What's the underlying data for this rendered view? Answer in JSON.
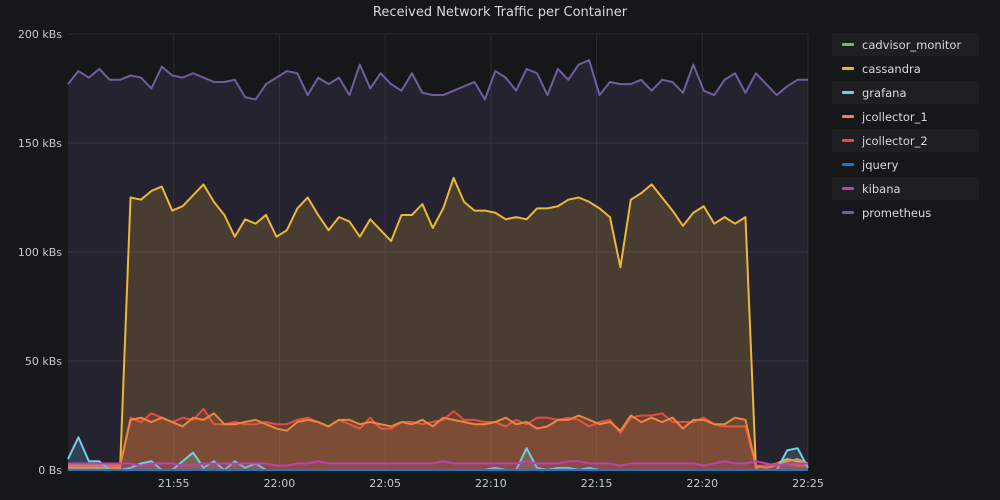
{
  "panel": {
    "title": "Received Network Traffic per Container"
  },
  "chart_data": {
    "type": "area",
    "title": "Received Network Traffic per Container",
    "x_start": "21:50",
    "x_end": "22:25",
    "x_ticks": [
      "21:55",
      "22:00",
      "22:05",
      "22:10",
      "22:15",
      "22:20",
      "22:25"
    ],
    "y_ticks": [
      "0 Bs",
      "50 kBs",
      "100 kBs",
      "150 kBs",
      "200 kBs"
    ],
    "ylim": [
      0,
      200
    ],
    "y_unit": "kBs",
    "legend_placement": "right",
    "grid": true,
    "x": [
      "21:50",
      "21:50",
      "21:51",
      "21:51",
      "21:52",
      "21:52",
      "21:53",
      "21:53",
      "21:54",
      "21:54",
      "21:55",
      "21:55",
      "21:56",
      "21:56",
      "21:57",
      "21:57",
      "21:58",
      "21:58",
      "21:59",
      "21:59",
      "22:00",
      "22:00",
      "22:01",
      "22:01",
      "22:02",
      "22:02",
      "22:03",
      "22:03",
      "22:04",
      "22:04",
      "22:05",
      "22:05",
      "22:06",
      "22:06",
      "22:07",
      "22:07",
      "22:08",
      "22:08",
      "22:09",
      "22:09",
      "22:10",
      "22:10",
      "22:11",
      "22:11",
      "22:12",
      "22:12",
      "22:13",
      "22:13",
      "22:14",
      "22:14",
      "22:15",
      "22:15",
      "22:16",
      "22:16",
      "22:17",
      "22:17",
      "22:18",
      "22:18",
      "22:19",
      "22:19",
      "22:20",
      "22:20",
      "22:21",
      "22:21",
      "22:22",
      "22:22",
      "22:23",
      "22:23",
      "22:24",
      "22:24",
      "22:25",
      "22:25"
    ],
    "series": [
      {
        "name": "cadvisor_monitor",
        "color": "#7eb26d",
        "values": [
          0,
          0,
          0,
          0,
          0,
          0,
          0,
          0,
          0,
          0,
          0,
          0,
          0,
          0,
          0,
          0,
          0,
          0,
          0,
          0,
          0,
          0,
          0,
          0,
          0,
          0,
          0,
          0,
          0,
          0,
          0,
          0,
          0,
          0,
          0,
          0,
          0,
          0,
          0,
          0,
          0,
          0,
          0,
          0,
          0,
          0,
          0,
          0,
          0,
          0,
          0,
          0,
          0,
          0,
          0,
          0,
          0,
          0,
          0,
          0,
          0,
          0,
          0,
          0,
          0,
          0,
          0,
          0,
          0,
          0,
          0,
          0
        ]
      },
      {
        "name": "cassandra",
        "color": "#eab839",
        "values": [
          1,
          1,
          1,
          1,
          1,
          1,
          125,
          124,
          128,
          130,
          119,
          121,
          126,
          131,
          123,
          117,
          107,
          115,
          113,
          117,
          107,
          110,
          120,
          125,
          117,
          110,
          116,
          114,
          107,
          115,
          110,
          105,
          117,
          117,
          122,
          111,
          120,
          134,
          123,
          119,
          119,
          118,
          115,
          116,
          115,
          120,
          120,
          121,
          124,
          125,
          123,
          120,
          116,
          93,
          124,
          127,
          131,
          125,
          119,
          112,
          118,
          121,
          113,
          116,
          113,
          116,
          1,
          2,
          3,
          5,
          4,
          2
        ]
      },
      {
        "name": "grafana",
        "color": "#6ed0e0",
        "values": [
          5,
          15,
          4,
          4,
          0,
          0,
          1,
          3,
          4,
          0,
          0,
          4,
          8,
          1,
          4,
          0,
          4,
          1,
          3,
          0,
          0,
          0,
          0,
          0,
          0,
          0,
          0,
          0,
          0,
          0,
          0,
          0,
          0,
          0,
          0,
          0,
          0,
          0,
          0,
          0,
          0,
          1,
          0,
          0,
          10,
          1,
          0,
          1,
          1,
          0,
          1,
          0,
          0,
          0,
          0,
          0,
          0,
          0,
          0,
          0,
          0,
          0,
          0,
          0,
          0,
          0,
          0,
          0,
          0,
          9,
          10,
          1
        ]
      },
      {
        "name": "jcollector_1",
        "color": "#ef843c",
        "values": [
          2,
          2,
          2,
          2,
          2,
          2,
          23,
          24,
          22,
          24,
          22,
          20,
          24,
          23,
          26,
          21,
          21,
          22,
          23,
          21,
          19,
          18,
          22,
          23,
          22,
          20,
          23,
          23,
          21,
          22,
          21,
          20,
          22,
          21,
          23,
          20,
          24,
          23,
          22,
          21,
          21,
          22,
          24,
          21,
          22,
          19,
          20,
          23,
          23,
          25,
          23,
          21,
          22,
          18,
          25,
          22,
          24,
          22,
          24,
          19,
          23,
          23,
          21,
          21,
          24,
          23,
          2,
          1,
          2,
          4,
          5,
          3
        ]
      },
      {
        "name": "jcollector_2",
        "color": "#e24d42",
        "values": [
          2,
          2,
          2,
          2,
          2,
          2,
          24,
          22,
          26,
          24,
          22,
          24,
          23,
          28,
          21,
          21,
          22,
          21,
          21,
          22,
          21,
          21,
          23,
          24,
          22,
          20,
          23,
          21,
          19,
          24,
          19,
          19,
          22,
          22,
          21,
          22,
          23,
          27,
          23,
          23,
          22,
          22,
          20,
          23,
          21,
          24,
          24,
          23,
          24,
          23,
          20,
          22,
          23,
          17,
          24,
          25,
          25,
          26,
          22,
          22,
          22,
          24,
          21,
          20,
          20,
          20,
          2,
          2,
          3,
          3,
          2,
          2
        ]
      },
      {
        "name": "jquery",
        "color": "#1f78c1",
        "values": [
          0,
          0,
          0,
          0,
          0,
          0,
          0,
          0,
          0,
          0,
          0,
          0,
          0,
          0,
          0,
          0,
          0,
          0,
          0,
          0,
          0,
          0,
          0,
          0,
          0,
          0,
          0,
          0,
          0,
          0,
          0,
          0,
          0,
          0,
          0,
          0,
          0,
          0,
          0,
          0,
          0,
          0,
          0,
          0,
          0,
          0,
          0,
          0,
          0,
          0,
          0,
          0,
          0,
          0,
          0,
          0,
          0,
          0,
          0,
          0,
          0,
          0,
          0,
          0,
          0,
          0,
          0,
          0,
          0,
          0,
          0,
          0
        ]
      },
      {
        "name": "kibana",
        "color": "#ba43a9",
        "values": [
          3,
          3,
          3,
          3,
          3,
          3,
          3,
          2,
          3,
          3,
          3,
          2,
          2,
          3,
          3,
          3,
          3,
          3,
          3,
          3,
          2,
          2,
          3,
          3,
          4,
          3,
          3,
          3,
          3,
          3,
          3,
          3,
          3,
          3,
          3,
          3,
          4,
          3,
          3,
          3,
          3,
          3,
          3,
          3,
          4,
          3,
          3,
          3,
          4,
          4,
          3,
          3,
          3,
          2,
          3,
          3,
          3,
          3,
          3,
          3,
          3,
          2,
          3,
          4,
          3,
          3,
          4,
          3,
          2,
          3,
          3,
          3
        ]
      },
      {
        "name": "prometheus",
        "color": "#705da0",
        "values": [
          177,
          183,
          180,
          184,
          179,
          179,
          181,
          180,
          175,
          185,
          181,
          180,
          182,
          180,
          178,
          178,
          179,
          171,
          170,
          177,
          180,
          183,
          182,
          172,
          180,
          177,
          180,
          172,
          186,
          175,
          182,
          177,
          174,
          182,
          173,
          172,
          172,
          174,
          176,
          178,
          170,
          183,
          180,
          174,
          184,
          182,
          172,
          184,
          179,
          186,
          188,
          172,
          178,
          177,
          177,
          179,
          174,
          179,
          178,
          173,
          186,
          174,
          172,
          179,
          182,
          173,
          182,
          177,
          172,
          176,
          179,
          179
        ]
      }
    ]
  }
}
